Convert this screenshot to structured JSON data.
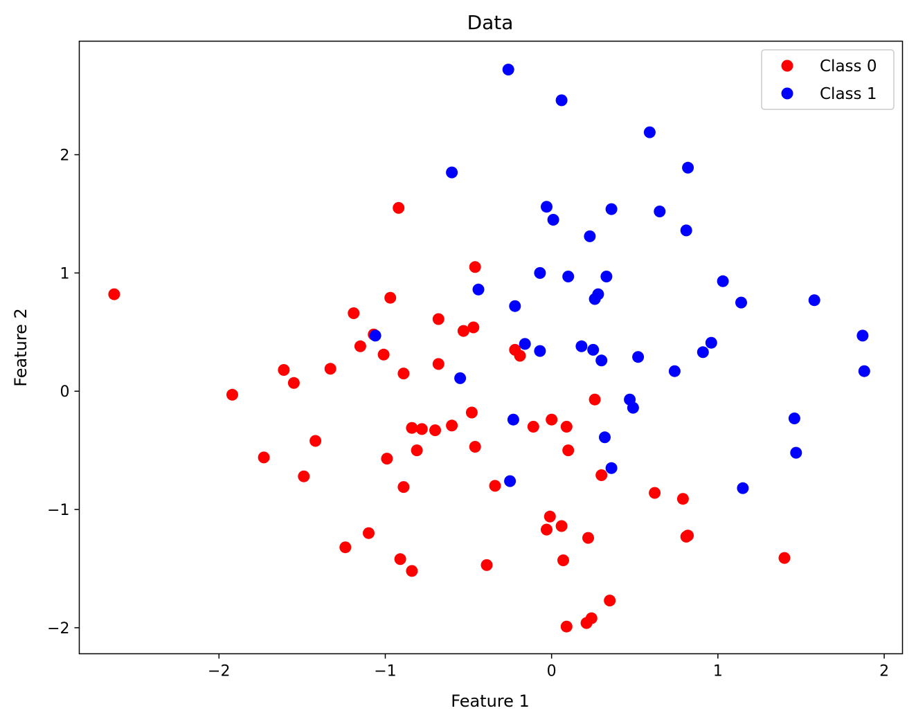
{
  "chart_data": {
    "type": "scatter",
    "title": "Data",
    "xlabel": "Feature 1",
    "ylabel": "Feature 2",
    "xlim": [
      -2.84,
      2.11
    ],
    "ylim": [
      -2.22,
      2.96
    ],
    "xticks": [
      -2,
      -1,
      0,
      1,
      2
    ],
    "yticks": [
      -2,
      -1,
      0,
      1,
      2
    ],
    "xtick_labels": [
      "−2",
      "−1",
      "0",
      "1",
      "2"
    ],
    "ytick_labels": [
      "−2",
      "−1",
      "0",
      "1",
      "2"
    ],
    "grid": false,
    "legend_position": "top-right",
    "series": [
      {
        "name": "Class 0",
        "color": "#ff0000",
        "points": [
          [
            -2.63,
            0.82
          ],
          [
            -1.92,
            -0.03
          ],
          [
            -1.73,
            -0.56
          ],
          [
            -1.61,
            0.18
          ],
          [
            -1.55,
            0.07
          ],
          [
            -1.49,
            -0.72
          ],
          [
            -1.42,
            -0.42
          ],
          [
            -1.33,
            0.19
          ],
          [
            -1.24,
            -1.32
          ],
          [
            -1.19,
            0.66
          ],
          [
            -1.15,
            0.38
          ],
          [
            -1.1,
            -1.2
          ],
          [
            -1.07,
            0.48
          ],
          [
            -1.01,
            0.31
          ],
          [
            -0.99,
            -0.57
          ],
          [
            -0.97,
            0.79
          ],
          [
            -0.92,
            1.55
          ],
          [
            -0.91,
            -1.42
          ],
          [
            -0.89,
            0.15
          ],
          [
            -0.89,
            -0.81
          ],
          [
            -0.84,
            -0.31
          ],
          [
            -0.84,
            -1.52
          ],
          [
            -0.81,
            -0.5
          ],
          [
            -0.78,
            -0.32
          ],
          [
            -0.7,
            -0.33
          ],
          [
            -0.68,
            0.61
          ],
          [
            -0.68,
            0.23
          ],
          [
            -0.6,
            -0.29
          ],
          [
            -0.53,
            0.51
          ],
          [
            -0.47,
            0.54
          ],
          [
            -0.48,
            -0.18
          ],
          [
            -0.46,
            1.05
          ],
          [
            -0.46,
            -0.47
          ],
          [
            -0.39,
            -1.47
          ],
          [
            -0.34,
            -0.8
          ],
          [
            -0.22,
            0.35
          ],
          [
            -0.19,
            0.3
          ],
          [
            -0.11,
            -0.3
          ],
          [
            -0.03,
            -1.17
          ],
          [
            -0.01,
            -1.06
          ],
          [
            0.0,
            -0.24
          ],
          [
            0.06,
            -1.14
          ],
          [
            0.07,
            -1.43
          ],
          [
            0.09,
            -0.3
          ],
          [
            0.09,
            -1.99
          ],
          [
            0.1,
            -0.5
          ],
          [
            0.21,
            -1.96
          ],
          [
            0.22,
            -1.24
          ],
          [
            0.24,
            -1.92
          ],
          [
            0.26,
            -0.07
          ],
          [
            0.3,
            -0.71
          ],
          [
            0.35,
            -1.77
          ],
          [
            0.62,
            -0.86
          ],
          [
            0.79,
            -0.91
          ],
          [
            0.81,
            -1.23
          ],
          [
            0.82,
            -1.22
          ],
          [
            1.4,
            -1.41
          ]
        ]
      },
      {
        "name": "Class 1",
        "color": "#0000ff",
        "points": [
          [
            -0.26,
            2.72
          ],
          [
            0.06,
            2.46
          ],
          [
            0.59,
            2.19
          ],
          [
            -0.6,
            1.85
          ],
          [
            0.82,
            1.89
          ],
          [
            -0.03,
            1.56
          ],
          [
            0.01,
            1.45
          ],
          [
            0.36,
            1.54
          ],
          [
            0.65,
            1.52
          ],
          [
            0.81,
            1.36
          ],
          [
            0.23,
            1.31
          ],
          [
            -0.07,
            1.0
          ],
          [
            0.1,
            0.97
          ],
          [
            0.33,
            0.97
          ],
          [
            1.03,
            0.93
          ],
          [
            -0.44,
            0.86
          ],
          [
            0.28,
            0.82
          ],
          [
            0.26,
            0.78
          ],
          [
            1.14,
            0.75
          ],
          [
            1.58,
            0.77
          ],
          [
            -0.22,
            0.72
          ],
          [
            -1.06,
            0.47
          ],
          [
            1.87,
            0.47
          ],
          [
            -0.16,
            0.4
          ],
          [
            0.18,
            0.38
          ],
          [
            0.25,
            0.35
          ],
          [
            -0.07,
            0.34
          ],
          [
            0.3,
            0.26
          ],
          [
            0.52,
            0.29
          ],
          [
            0.91,
            0.33
          ],
          [
            0.96,
            0.41
          ],
          [
            0.74,
            0.17
          ],
          [
            1.88,
            0.17
          ],
          [
            -0.55,
            0.11
          ],
          [
            0.47,
            -0.07
          ],
          [
            0.49,
            -0.14
          ],
          [
            -0.23,
            -0.24
          ],
          [
            1.46,
            -0.23
          ],
          [
            0.32,
            -0.39
          ],
          [
            1.47,
            -0.52
          ],
          [
            0.36,
            -0.65
          ],
          [
            -0.25,
            -0.76
          ],
          [
            1.15,
            -0.82
          ]
        ]
      }
    ]
  }
}
